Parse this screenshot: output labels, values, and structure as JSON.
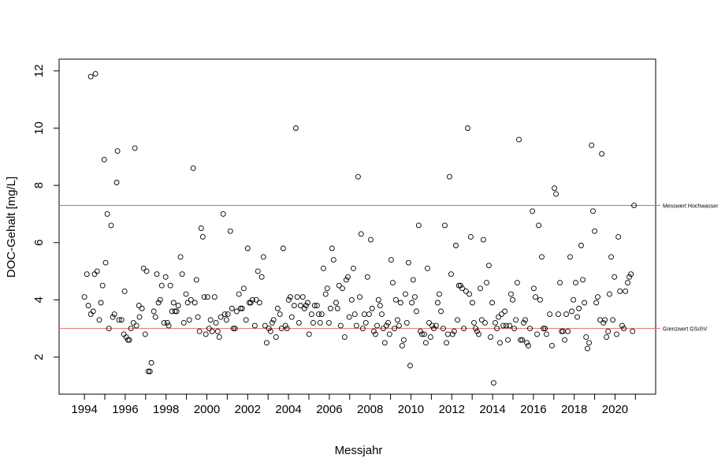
{
  "chart_data": {
    "type": "scatter",
    "x_label": "Messjahr",
    "y_label": "DOC-Gehalt [mg/L]",
    "color": "#000000",
    "x": [
      1994.0,
      1994.12,
      1994.19,
      1994.31,
      1994.31,
      1994.43,
      1994.5,
      1994.54,
      1994.62,
      1994.73,
      1994.81,
      1994.89,
      1994.97,
      1995.04,
      1995.12,
      1995.2,
      1995.31,
      1995.39,
      1995.47,
      1995.58,
      1995.62,
      1995.7,
      1995.82,
      1995.93,
      1995.97,
      1996.05,
      1996.13,
      1996.2,
      1996.28,
      1996.4,
      1996.47,
      1996.55,
      1996.67,
      1996.7,
      1996.82,
      1996.9,
      1996.98,
      1997.05,
      1997.13,
      1997.21,
      1997.28,
      1997.4,
      1997.48,
      1997.55,
      1997.63,
      1997.71,
      1997.79,
      1997.9,
      1997.98,
      1998.06,
      1998.13,
      1998.21,
      1998.29,
      1998.37,
      1998.44,
      1998.52,
      1998.6,
      1998.71,
      1998.79,
      1998.87,
      1998.98,
      1999.06,
      1999.14,
      1999.22,
      1999.33,
      1999.41,
      1999.49,
      1999.56,
      1999.64,
      1999.72,
      1999.8,
      1999.87,
      1999.95,
      2000.03,
      2000.11,
      2000.18,
      2000.26,
      2000.38,
      2000.45,
      2000.53,
      2000.61,
      2000.68,
      2000.8,
      2000.88,
      2000.96,
      2001.03,
      2001.15,
      2001.23,
      2001.3,
      2001.38,
      2001.46,
      2001.57,
      2001.65,
      2001.73,
      2001.81,
      2001.92,
      2002.0,
      2002.08,
      2002.15,
      2002.23,
      2002.35,
      2002.42,
      2002.5,
      2002.58,
      2002.69,
      2002.77,
      2002.85,
      2002.93,
      2003.04,
      2003.12,
      2003.2,
      2003.27,
      2003.39,
      2003.47,
      2003.58,
      2003.66,
      2003.74,
      2003.85,
      2003.93,
      2004.01,
      2004.09,
      2004.16,
      2004.28,
      2004.36,
      2004.43,
      2004.51,
      2004.59,
      2004.7,
      2004.78,
      2004.86,
      2004.94,
      2005.01,
      2005.13,
      2005.21,
      2005.28,
      2005.4,
      2005.48,
      2005.55,
      2005.63,
      2005.71,
      2005.82,
      2005.9,
      2005.98,
      2006.06,
      2006.13,
      2006.21,
      2006.33,
      2006.4,
      2006.48,
      2006.56,
      2006.64,
      2006.75,
      2006.83,
      2006.91,
      2006.98,
      2007.1,
      2007.18,
      2007.25,
      2007.33,
      2007.41,
      2007.49,
      2007.56,
      2007.64,
      2007.72,
      2007.79,
      2007.87,
      2007.95,
      2008.03,
      2008.1,
      2008.18,
      2008.26,
      2008.34,
      2008.41,
      2008.49,
      2008.57,
      2008.64,
      2008.72,
      2008.8,
      2008.88,
      2008.95,
      2009.03,
      2009.11,
      2009.19,
      2009.26,
      2009.34,
      2009.42,
      2009.49,
      2009.57,
      2009.65,
      2009.73,
      2009.8,
      2009.88,
      2009.96,
      2010.04,
      2010.11,
      2010.19,
      2010.27,
      2010.38,
      2010.46,
      2010.54,
      2010.65,
      2010.73,
      2010.81,
      2010.89,
      2010.96,
      2011.04,
      2011.12,
      2011.23,
      2011.31,
      2011.39,
      2011.47,
      2011.58,
      2011.66,
      2011.74,
      2011.81,
      2011.89,
      2011.97,
      2012.04,
      2012.12,
      2012.2,
      2012.28,
      2012.35,
      2012.43,
      2012.51,
      2012.59,
      2012.7,
      2012.78,
      2012.86,
      2012.93,
      2013.01,
      2013.09,
      2013.17,
      2013.24,
      2013.32,
      2013.4,
      2013.47,
      2013.55,
      2013.63,
      2013.71,
      2013.82,
      2013.9,
      2013.98,
      2014.05,
      2014.13,
      2014.21,
      2014.29,
      2014.36,
      2014.44,
      2014.52,
      2014.6,
      2014.67,
      2014.75,
      2014.83,
      2014.9,
      2014.98,
      2015.06,
      2015.14,
      2015.21,
      2015.29,
      2015.37,
      2015.45,
      2015.52,
      2015.6,
      2015.68,
      2015.75,
      2015.83,
      2015.95,
      2016.02,
      2016.1,
      2016.18,
      2016.26,
      2016.33,
      2016.41,
      2016.49,
      2016.57,
      2016.64,
      2016.8,
      2016.91,
      2017.03,
      2017.11,
      2017.22,
      2017.3,
      2017.38,
      2017.45,
      2017.53,
      2017.61,
      2017.69,
      2017.8,
      2017.88,
      2017.96,
      2018.07,
      2018.15,
      2018.23,
      2018.34,
      2018.42,
      2018.5,
      2018.58,
      2018.65,
      2018.73,
      2018.85,
      2018.92,
      2019.0,
      2019.08,
      2019.15,
      2019.27,
      2019.35,
      2019.43,
      2019.5,
      2019.58,
      2019.66,
      2019.73,
      2019.81,
      2019.89,
      2019.97,
      2020.08,
      2020.16,
      2020.24,
      2020.35,
      2020.43,
      2020.51,
      2020.62,
      2020.7,
      2020.78,
      2020.86,
      2020.93
    ],
    "values": [
      4.1,
      4.9,
      3.8,
      11.8,
      3.5,
      3.6,
      4.9,
      11.9,
      5.0,
      3.3,
      3.9,
      4.5,
      8.9,
      5.3,
      7.0,
      3.0,
      6.6,
      3.4,
      3.5,
      8.1,
      9.2,
      3.3,
      3.3,
      2.8,
      4.3,
      2.7,
      2.6,
      2.6,
      3.0,
      3.2,
      9.3,
      3.1,
      3.8,
      3.4,
      3.7,
      5.1,
      2.8,
      5.0,
      1.5,
      1.5,
      1.8,
      3.6,
      3.4,
      4.9,
      3.9,
      4.0,
      4.5,
      3.2,
      4.8,
      3.2,
      3.1,
      4.5,
      3.6,
      3.9,
      3.6,
      3.6,
      3.8,
      5.5,
      4.9,
      3.2,
      4.2,
      3.9,
      3.3,
      4.0,
      8.6,
      3.9,
      4.7,
      3.4,
      2.9,
      6.5,
      6.2,
      4.1,
      2.8,
      4.1,
      3.0,
      3.3,
      2.9,
      4.1,
      3.2,
      2.9,
      2.7,
      3.4,
      7.0,
      3.5,
      3.3,
      3.5,
      6.4,
      3.7,
      3.0,
      3.0,
      3.6,
      4.2,
      3.7,
      3.7,
      4.4,
      3.3,
      5.8,
      3.9,
      3.9,
      4.0,
      3.1,
      4.0,
      5.0,
      3.9,
      4.8,
      5.5,
      3.1,
      2.5,
      3.0,
      2.9,
      3.2,
      3.3,
      2.7,
      3.7,
      3.5,
      3.0,
      5.8,
      3.1,
      3.0,
      4.0,
      4.1,
      3.4,
      3.8,
      10.0,
      4.1,
      3.2,
      3.8,
      4.1,
      3.7,
      3.8,
      3.9,
      2.8,
      3.5,
      3.2,
      3.8,
      3.8,
      3.5,
      3.2,
      3.5,
      5.1,
      4.2,
      4.4,
      3.2,
      3.7,
      5.8,
      5.4,
      3.9,
      3.7,
      4.5,
      3.1,
      4.4,
      2.7,
      4.7,
      4.8,
      3.4,
      4.0,
      5.1,
      3.5,
      3.1,
      8.3,
      4.1,
      6.3,
      3.0,
      3.5,
      3.2,
      4.8,
      3.5,
      6.1,
      3.7,
      2.9,
      2.8,
      3.1,
      4.0,
      3.8,
      3.5,
      3.0,
      2.5,
      3.1,
      3.2,
      2.8,
      5.4,
      4.6,
      3.0,
      4.0,
      3.3,
      3.1,
      3.9,
      2.4,
      2.6,
      4.2,
      3.2,
      5.3,
      1.7,
      3.9,
      4.7,
      4.1,
      3.6,
      6.6,
      2.9,
      2.8,
      2.8,
      2.5,
      5.1,
      3.2,
      2.7,
      3.1,
      3.0,
      3.1,
      3.9,
      4.2,
      3.6,
      3.0,
      6.6,
      2.5,
      2.8,
      8.3,
      4.9,
      2.8,
      2.9,
      5.9,
      3.3,
      4.5,
      4.5,
      4.4,
      3.0,
      4.3,
      10.0,
      4.2,
      6.2,
      3.9,
      3.2,
      3.0,
      2.9,
      2.8,
      4.4,
      3.3,
      6.1,
      3.2,
      4.6,
      5.2,
      2.7,
      3.9,
      1.1,
      3.2,
      3.0,
      3.4,
      2.5,
      3.5,
      3.1,
      3.6,
      3.1,
      2.6,
      3.1,
      4.2,
      4.0,
      3.0,
      3.3,
      4.6,
      9.6,
      2.6,
      2.6,
      3.2,
      3.3,
      2.5,
      2.4,
      3.0,
      7.1,
      4.4,
      4.1,
      2.8,
      6.6,
      4.0,
      5.5,
      3.0,
      3.0,
      2.8,
      3.5,
      2.4,
      7.9,
      7.7,
      3.5,
      4.6,
      2.9,
      2.9,
      2.6,
      3.5,
      2.9,
      5.5,
      3.6,
      4.0,
      4.6,
      3.4,
      3.7,
      5.9,
      4.7,
      3.9,
      2.7,
      2.3,
      2.5,
      9.4,
      7.1,
      6.4,
      3.9,
      4.1,
      3.3,
      9.1,
      3.2,
      3.3,
      2.7,
      2.9,
      4.2,
      5.5,
      3.3,
      4.8,
      2.8,
      6.2,
      4.3,
      3.1,
      3.0,
      4.3,
      4.6,
      4.8,
      4.9,
      2.9,
      7.3
    ],
    "xlim": [
      1992.76,
      2021.99
    ],
    "xticks": [
      1994,
      1996,
      1998,
      2000,
      2002,
      2004,
      2006,
      2008,
      2010,
      2012,
      2014,
      2016,
      2018,
      2020
    ],
    "xminorticks": [
      1995,
      1997,
      1999,
      2001,
      2003,
      2005,
      2007,
      2009,
      2011,
      2013,
      2015,
      2017,
      2019,
      2021
    ],
    "ylim": [
      0.705,
      12.41
    ],
    "yticks": [
      2,
      4,
      6,
      8,
      10,
      12
    ],
    "hlines": [
      {
        "value": 7.3,
        "label": "Messwert Hochwasser",
        "color": "#3cb371"
      },
      {
        "value": 3.0,
        "label": "Grenzwert GSchV",
        "color": "#e9705a"
      }
    ]
  }
}
